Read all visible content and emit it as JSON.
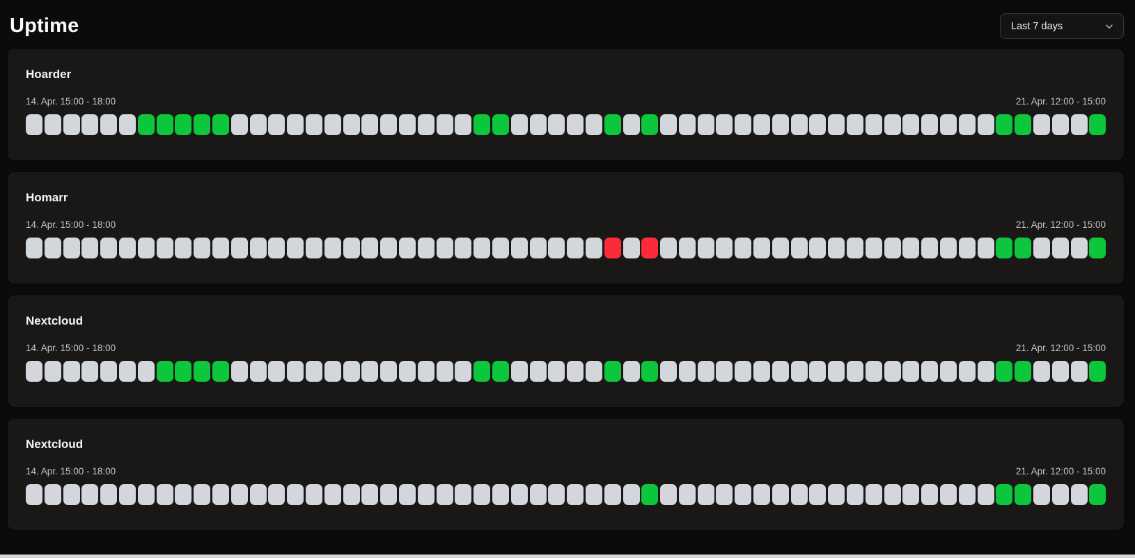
{
  "page": {
    "title": "Uptime",
    "range_selector": {
      "value": "Last 7 days"
    }
  },
  "colors": {
    "up": "#0cc73c",
    "down": "#fb2b3a",
    "empty": "#d3d6da",
    "card_bg": "#1a1817",
    "page_bg": "#0c0b0a"
  },
  "chart_data": {
    "type": "heatmap",
    "note": "uptime status strips; one cell per check slot, left = oldest",
    "statuses": [
      "empty",
      "up",
      "down"
    ]
  },
  "monitors": [
    {
      "name": "Hoarder",
      "start_label": "14. Apr. 15:00 - 18:00",
      "end_label": "21. Apr. 12:00 - 15:00",
      "cells": [
        "empty",
        "empty",
        "empty",
        "empty",
        "empty",
        "empty",
        "up",
        "up",
        "up",
        "up",
        "up",
        "empty",
        "empty",
        "empty",
        "empty",
        "empty",
        "empty",
        "empty",
        "empty",
        "empty",
        "empty",
        "empty",
        "empty",
        "empty",
        "up",
        "up",
        "empty",
        "empty",
        "empty",
        "empty",
        "empty",
        "up",
        "empty",
        "up",
        "empty",
        "empty",
        "empty",
        "empty",
        "empty",
        "empty",
        "empty",
        "empty",
        "empty",
        "empty",
        "empty",
        "empty",
        "empty",
        "empty",
        "empty",
        "empty",
        "empty",
        "empty",
        "up",
        "up",
        "empty",
        "empty",
        "empty",
        "up"
      ]
    },
    {
      "name": "Homarr",
      "start_label": "14. Apr. 15:00 - 18:00",
      "end_label": "21. Apr. 12:00 - 15:00",
      "cells": [
        "empty",
        "empty",
        "empty",
        "empty",
        "empty",
        "empty",
        "empty",
        "empty",
        "empty",
        "empty",
        "empty",
        "empty",
        "empty",
        "empty",
        "empty",
        "empty",
        "empty",
        "empty",
        "empty",
        "empty",
        "empty",
        "empty",
        "empty",
        "empty",
        "empty",
        "empty",
        "empty",
        "empty",
        "empty",
        "empty",
        "empty",
        "down",
        "empty",
        "down",
        "empty",
        "empty",
        "empty",
        "empty",
        "empty",
        "empty",
        "empty",
        "empty",
        "empty",
        "empty",
        "empty",
        "empty",
        "empty",
        "empty",
        "empty",
        "empty",
        "empty",
        "empty",
        "up",
        "up",
        "empty",
        "empty",
        "empty",
        "up"
      ]
    },
    {
      "name": "Nextcloud",
      "start_label": "14. Apr. 15:00 - 18:00",
      "end_label": "21. Apr. 12:00 - 15:00",
      "cells": [
        "empty",
        "empty",
        "empty",
        "empty",
        "empty",
        "empty",
        "empty",
        "up",
        "up",
        "up",
        "up",
        "empty",
        "empty",
        "empty",
        "empty",
        "empty",
        "empty",
        "empty",
        "empty",
        "empty",
        "empty",
        "empty",
        "empty",
        "empty",
        "up",
        "up",
        "empty",
        "empty",
        "empty",
        "empty",
        "empty",
        "up",
        "empty",
        "up",
        "empty",
        "empty",
        "empty",
        "empty",
        "empty",
        "empty",
        "empty",
        "empty",
        "empty",
        "empty",
        "empty",
        "empty",
        "empty",
        "empty",
        "empty",
        "empty",
        "empty",
        "empty",
        "up",
        "up",
        "empty",
        "empty",
        "empty",
        "up"
      ]
    },
    {
      "name": "Nextcloud",
      "start_label": "14. Apr. 15:00 - 18:00",
      "end_label": "21. Apr. 12:00 - 15:00",
      "cells": [
        "empty",
        "empty",
        "empty",
        "empty",
        "empty",
        "empty",
        "empty",
        "empty",
        "empty",
        "empty",
        "empty",
        "empty",
        "empty",
        "empty",
        "empty",
        "empty",
        "empty",
        "empty",
        "empty",
        "empty",
        "empty",
        "empty",
        "empty",
        "empty",
        "empty",
        "empty",
        "empty",
        "empty",
        "empty",
        "empty",
        "empty",
        "empty",
        "empty",
        "up",
        "empty",
        "empty",
        "empty",
        "empty",
        "empty",
        "empty",
        "empty",
        "empty",
        "empty",
        "empty",
        "empty",
        "empty",
        "empty",
        "empty",
        "empty",
        "empty",
        "empty",
        "empty",
        "up",
        "up",
        "empty",
        "empty",
        "empty",
        "up"
      ]
    }
  ]
}
